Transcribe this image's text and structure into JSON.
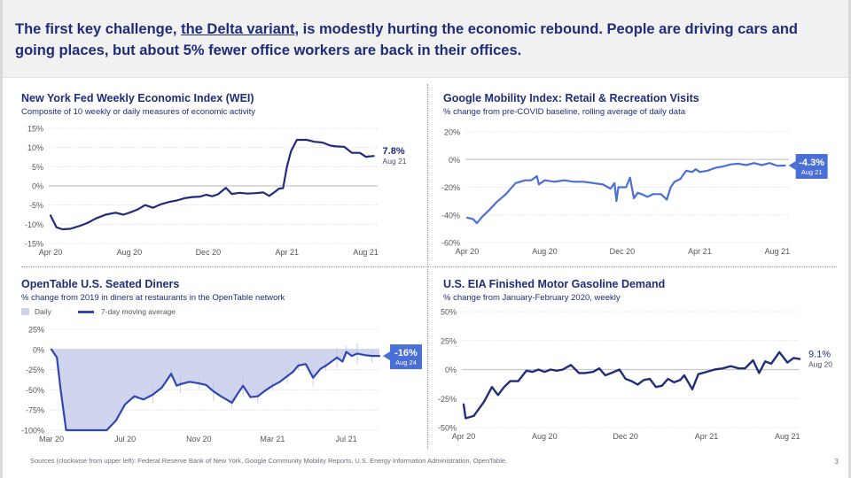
{
  "headline": {
    "part1": "The first key challenge, ",
    "highlight": "the Delta variant",
    "part2": ", is modestly hurting the economic rebound. People are driving cars and going places, but about 5% fewer office workers are back in their offices."
  },
  "footer": {
    "sources": "Sources (clockwise from upper left): Federal Reserve Bank of New York, Google Community Mobility Reports, U.S. Energy Information Administration, OpenTable.",
    "page_number": "3"
  },
  "colors": {
    "title": "#1f2d7a",
    "wei_line": "#1f2d7a",
    "mobility_line": "#4a6fd6",
    "callout_bg": "#4a6fd6",
    "opentable_line": "#2e47b5",
    "opentable_fill": "#cdd3ec",
    "gas_line": "#1f2d7a"
  },
  "chart_data": [
    {
      "id": "wei",
      "type": "line",
      "title": "New York Fed Weekly Economic Index (WEI)",
      "subtitle": "Composite of 10 weekly or daily measures of economic activity",
      "xlabel": "",
      "ylabel": "",
      "ylim": [
        -15,
        15
      ],
      "yticks": [
        15,
        10,
        5,
        0,
        -5,
        -10,
        -15
      ],
      "ytick_labels": [
        "15%",
        "10%",
        "5%",
        "0%",
        "-5%",
        "-10%",
        "-15%"
      ],
      "xlim": [
        0,
        16.6
      ],
      "xticks": [
        0,
        4,
        8,
        12,
        16
      ],
      "xtick_labels": [
        "Apr 20",
        "Aug 20",
        "Dec 20",
        "Apr 21",
        "Aug 21"
      ],
      "grid": true,
      "callout": {
        "value": "7.8%",
        "date": "Aug 21",
        "style": "text"
      },
      "series": [
        {
          "name": "WEI",
          "x": [
            0,
            0.3,
            0.6,
            1.0,
            1.5,
            1.9,
            2.3,
            2.8,
            3.3,
            3.7,
            4.0,
            4.4,
            4.8,
            5.2,
            5.6,
            6.0,
            6.4,
            6.8,
            7.2,
            7.6,
            7.9,
            8.2,
            8.5,
            8.9,
            9.2,
            9.6,
            10.0,
            10.4,
            10.8,
            11.1,
            11.4,
            11.6,
            11.8,
            12.0,
            12.2,
            12.5,
            13.0,
            13.4,
            13.8,
            14.2,
            14.5,
            14.9,
            15.3,
            15.7,
            16.0,
            16.4
          ],
          "y": [
            -7.7,
            -10.8,
            -11.3,
            -11.2,
            -10.4,
            -9.6,
            -8.5,
            -7.5,
            -7.0,
            -7.5,
            -7.0,
            -6.2,
            -5.0,
            -5.7,
            -4.8,
            -4.2,
            -3.8,
            -3.2,
            -2.9,
            -2.8,
            -2.3,
            -2.7,
            -2.2,
            -0.5,
            -2.1,
            -1.8,
            -2.0,
            -1.9,
            -1.7,
            -2.6,
            -1.5,
            -0.7,
            -0.6,
            5.0,
            9.0,
            12.0,
            12.0,
            11.5,
            11.3,
            10.5,
            10.3,
            10.2,
            8.6,
            8.6,
            7.6,
            7.8
          ]
        }
      ]
    },
    {
      "id": "mobility",
      "type": "line",
      "title": "Google Mobility Index: Retail & Recreation Visits",
      "subtitle": "% change from pre-COVID baseline, rolling average of daily data",
      "xlabel": "",
      "ylabel": "",
      "ylim": [
        -60,
        20
      ],
      "yticks": [
        20,
        0,
        -20,
        -40,
        -60
      ],
      "ytick_labels": [
        "20%",
        "0%",
        "-20%",
        "-40%",
        "-60%"
      ],
      "xlim": [
        0,
        16.6
      ],
      "xticks": [
        0,
        4,
        8,
        12,
        16
      ],
      "xtick_labels": [
        "Apr 20",
        "Aug 20",
        "Dec 20",
        "Apr 21",
        "Aug 21"
      ],
      "grid": true,
      "callout": {
        "value": "-4.3%",
        "date": "Aug 21",
        "style": "box"
      },
      "series": [
        {
          "name": "Retail & Recreation",
          "x": [
            0,
            0.3,
            0.5,
            0.8,
            1.1,
            1.5,
            2.0,
            2.5,
            3.0,
            3.3,
            3.6,
            3.7,
            4.0,
            4.5,
            5.0,
            5.5,
            6.0,
            6.5,
            7.0,
            7.4,
            7.6,
            7.7,
            7.8,
            8.2,
            8.4,
            8.6,
            8.8,
            9.0,
            9.3,
            9.6,
            10.0,
            10.3,
            10.5,
            10.7,
            11.0,
            11.3,
            11.6,
            11.8,
            12.0,
            12.4,
            12.8,
            13.2,
            13.6,
            14.0,
            14.4,
            14.8,
            15.2,
            15.6,
            16.0,
            16.4
          ],
          "y": [
            -42,
            -43,
            -46,
            -41,
            -37,
            -31,
            -25,
            -17,
            -15,
            -15,
            -12,
            -18,
            -15,
            -16,
            -15,
            -16,
            -16,
            -17,
            -18,
            -21,
            -17,
            -30,
            -20,
            -20,
            -13,
            -28,
            -24,
            -25,
            -27,
            -25,
            -25,
            -29,
            -20,
            -16,
            -14,
            -8,
            -9,
            -7,
            -9,
            -8,
            -6,
            -5,
            -3.5,
            -3,
            -4,
            -2.5,
            -4,
            -2.5,
            -4.5,
            -4.3
          ]
        }
      ]
    },
    {
      "id": "opentable",
      "type": "area",
      "title": "OpenTable U.S. Seated Diners",
      "subtitle": "% change from 2019 in diners at restaurants in the OpenTable network",
      "legend": [
        {
          "label": "Daily",
          "kind": "fill"
        },
        {
          "label": "7-day moving average",
          "kind": "line"
        }
      ],
      "xlabel": "",
      "ylabel": "",
      "ylim": [
        -100,
        25
      ],
      "yticks": [
        25,
        0,
        -25,
        -50,
        -75,
        -100
      ],
      "ytick_labels": [
        "25%",
        "0%",
        "-25%",
        "-50%",
        "-75%",
        "-100%"
      ],
      "xlim": [
        0,
        17.8
      ],
      "xticks": [
        0,
        4,
        8,
        12,
        16
      ],
      "xtick_labels": [
        "Mar 20",
        "Jul 20",
        "Nov 20",
        "Mar 21",
        "Jul 21"
      ],
      "grid": true,
      "callout": {
        "value": "-16%",
        "date": "Aug 24",
        "style": "box"
      },
      "series": [
        {
          "name": "7-day moving average",
          "x": [
            0,
            0.3,
            0.5,
            0.8,
            1.0,
            2.0,
            3.0,
            3.5,
            4.0,
            4.5,
            5.0,
            5.5,
            6.0,
            6.5,
            6.8,
            7.0,
            7.5,
            8.0,
            8.4,
            8.8,
            9.2,
            9.8,
            10.1,
            10.4,
            10.8,
            11.2,
            11.6,
            12.0,
            12.4,
            12.8,
            13.1,
            13.4,
            13.8,
            14.2,
            14.6,
            14.9,
            15.2,
            15.5,
            15.8,
            16.0,
            16.3,
            16.6,
            17.0,
            17.4,
            17.8
          ],
          "y": [
            0,
            -10,
            -50,
            -100,
            -100,
            -100,
            -100,
            -88,
            -68,
            -58,
            -62,
            -56,
            -47,
            -30,
            -45,
            -43,
            -40,
            -42,
            -44,
            -52,
            -58,
            -66,
            -55,
            -45,
            -59,
            -58,
            -51,
            -45,
            -40,
            -33,
            -28,
            -20,
            -18,
            -35,
            -24,
            -20,
            -15,
            -10,
            -15,
            -3,
            -8,
            -5,
            -7,
            -8,
            -8
          ]
        }
      ]
    },
    {
      "id": "gasoline",
      "type": "line",
      "title": "U.S. EIA Finished Motor Gasoline Demand",
      "subtitle": "% change from January-February 2020, weekly",
      "xlabel": "",
      "ylabel": "",
      "ylim": [
        -50,
        50
      ],
      "yticks": [
        50,
        25,
        0,
        -25,
        -50
      ],
      "ytick_labels": [
        "50%",
        "25%",
        "0%",
        "-25%",
        "-50%"
      ],
      "xlim": [
        0,
        16.6
      ],
      "xticks": [
        0,
        4,
        8,
        12,
        16
      ],
      "xtick_labels": [
        "Apr 20",
        "Aug 20",
        "Dec 20",
        "Apr 21",
        "Aug 21"
      ],
      "grid": true,
      "callout": {
        "value": "9.1%",
        "date": "Aug 20",
        "style": "text"
      },
      "series": [
        {
          "name": "Gasoline demand",
          "x": [
            0,
            0.1,
            0.5,
            1.0,
            1.4,
            1.7,
            2.0,
            2.3,
            2.7,
            3.1,
            3.4,
            3.7,
            4.0,
            4.3,
            4.6,
            4.9,
            5.3,
            5.7,
            6.0,
            6.4,
            6.7,
            7.0,
            7.3,
            7.7,
            8.0,
            8.3,
            8.6,
            8.9,
            9.2,
            9.5,
            9.8,
            10.1,
            10.4,
            10.7,
            10.9,
            11.3,
            11.6,
            12.0,
            12.4,
            12.8,
            13.2,
            13.6,
            13.9,
            14.3,
            14.6,
            14.9,
            15.2,
            15.6,
            16.0,
            16.3,
            16.6
          ],
          "y": [
            -30,
            -42,
            -40,
            -28,
            -15,
            -22,
            -15,
            -10,
            -10,
            -1,
            -2,
            0,
            -2,
            0,
            -1,
            0,
            4,
            -3,
            -3,
            -2,
            1,
            -5,
            -3,
            0,
            -8,
            -10,
            -13,
            -9,
            -8,
            -15,
            -14,
            -8,
            -11,
            -9,
            -5,
            -17,
            -4,
            -2,
            0,
            1,
            3,
            1,
            1,
            8,
            -3,
            7,
            5,
            15,
            6,
            10,
            9.1
          ]
        }
      ]
    }
  ]
}
